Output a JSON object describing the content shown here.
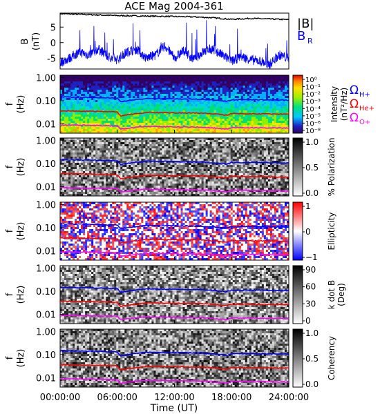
{
  "title": "ACE Mag 2004-361",
  "xlabel": "Time (UT)",
  "x_ticks": [
    "00:00:00",
    "06:00:00",
    "12:00:00",
    "18:00:00",
    "24:00:00"
  ],
  "colors": {
    "total_field": "#000000",
    "radial_field": "#0000ff",
    "gyro_h": "#0000ff",
    "gyro_he": "#ff0000",
    "gyro_o": "#ff00ff"
  },
  "chart_data": [
    {
      "type": "line",
      "panel": "magnetic-field",
      "ylabel_top": "B",
      "ylabel_unit": "(nT)",
      "y_ticks": [
        "5",
        "0",
        "-5"
      ],
      "ylim": [
        -8.5,
        9.5
      ],
      "xlim": [
        0,
        24
      ],
      "legend": [
        "|B|",
        "B",
        "R"
      ],
      "series": [
        {
          "name": "|B|",
          "x": [
            0,
            2,
            4,
            6,
            8,
            10,
            12,
            14,
            16,
            18,
            20,
            22,
            24
          ],
          "values": [
            9.3,
            9.1,
            8.9,
            8.7,
            8.6,
            8.5,
            8.4,
            8.3,
            8.0,
            7.5,
            7.8,
            7.6,
            7.4
          ]
        },
        {
          "name": "B_R",
          "x": [
            0,
            1,
            2,
            3,
            4,
            5,
            6,
            7,
            8,
            9,
            10,
            11,
            12,
            13,
            14,
            15,
            16,
            17,
            18,
            19,
            20,
            21,
            22,
            23,
            24
          ],
          "values": [
            -6.5,
            -5,
            -3,
            -4,
            -2,
            -4.5,
            -5.5,
            -3,
            -2,
            -5,
            -4,
            -1,
            -5,
            -2.5,
            -5.5,
            -3,
            -2,
            -4,
            -6,
            -4.5,
            -5.5,
            -6,
            -7,
            -4,
            -5
          ]
        }
      ]
    },
    {
      "type": "heatmap",
      "panel": "intensity",
      "ylabel_top": "f",
      "ylabel_unit": "(Hz)",
      "y_ticks": [
        "1.00",
        "0.10",
        "0.01"
      ],
      "colorbar_label": "Intensity",
      "colorbar_unit": "(nT²/Hz)",
      "colorbar_ticks": [
        "10⁰",
        "10⁻¹",
        "10⁻²",
        "10⁻³",
        "10⁻⁴",
        "10⁻⁵",
        "10⁻⁶",
        "10⁻⁸"
      ],
      "legend": [
        {
          "text": "Ω",
          "sub": "H+"
        },
        {
          "text": "Ω",
          "sub": "He+"
        },
        {
          "text": "Ω",
          "sub": "O+"
        }
      ]
    },
    {
      "type": "heatmap",
      "panel": "polarization",
      "ylabel_top": "f",
      "ylabel_unit": "(Hz)",
      "y_ticks": [
        "1.00",
        "0.10",
        "0.01"
      ],
      "colorbar_label": "% Polarization",
      "colorbar_ticks": [
        "1.0",
        "0.5",
        "0.0"
      ]
    },
    {
      "type": "heatmap",
      "panel": "ellipticity",
      "ylabel_top": "f",
      "ylabel_unit": "(Hz)",
      "y_ticks": [
        "1.00",
        "0.10",
        "0.01"
      ],
      "colorbar_label": "Ellipticity",
      "colorbar_ticks": [
        "1",
        "0",
        "−1"
      ]
    },
    {
      "type": "heatmap",
      "panel": "kdotb",
      "ylabel_top": "f",
      "ylabel_unit": "(Hz)",
      "y_ticks": [
        "1.00",
        "0.10",
        "0.01"
      ],
      "colorbar_label": "k dot B",
      "colorbar_unit": "(Deg)",
      "colorbar_ticks": [
        "90",
        "60",
        "30",
        "0"
      ]
    },
    {
      "type": "heatmap",
      "panel": "coherency",
      "ylabel_top": "f",
      "ylabel_unit": "(Hz)",
      "y_ticks": [
        "1.00",
        "0.10",
        "0.01"
      ],
      "colorbar_label": "Coherency",
      "colorbar_ticks": [
        "1.0",
        "0.5",
        "0.0"
      ]
    }
  ],
  "gyrofrequency_lines": {
    "x": [
      0,
      3,
      6,
      6.3,
      9,
      12,
      15,
      17.5,
      18,
      21,
      24
    ],
    "H+": [
      0.145,
      0.14,
      0.13,
      0.09,
      0.125,
      0.12,
      0.115,
      0.095,
      0.11,
      0.11,
      0.105
    ],
    "He+": [
      0.037,
      0.035,
      0.033,
      0.022,
      0.031,
      0.03,
      0.029,
      0.024,
      0.028,
      0.027,
      0.026
    ],
    "O+": [
      0.009,
      0.0088,
      0.0082,
      0.006,
      0.0078,
      0.0075,
      0.0072,
      0.006,
      0.007,
      0.0068,
      0.0066
    ]
  }
}
